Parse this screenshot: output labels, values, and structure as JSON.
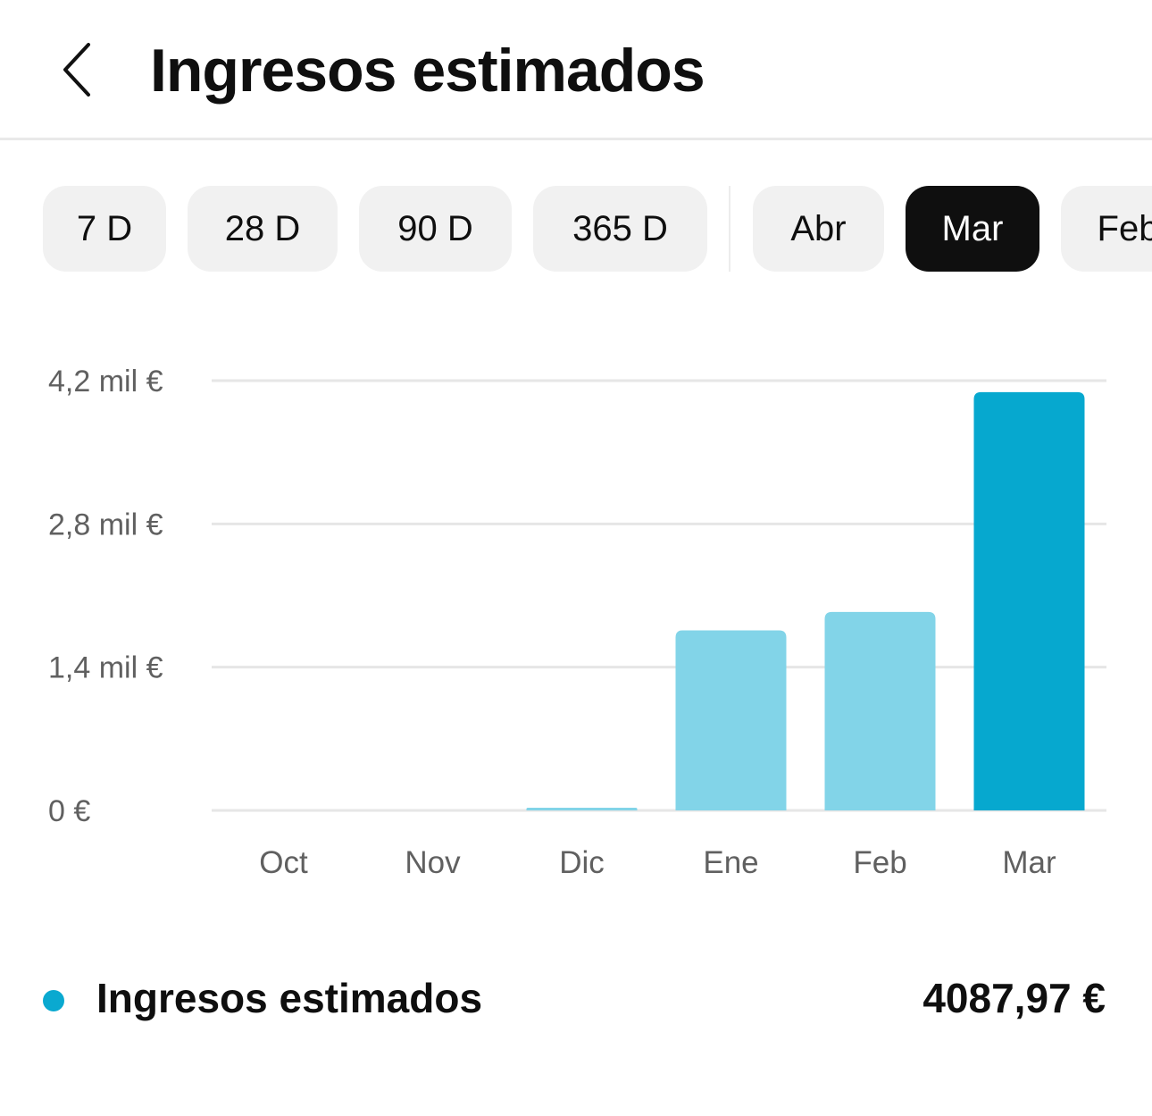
{
  "header": {
    "title": "Ingresos estimados",
    "back_icon": "chevron-left-icon"
  },
  "filters": {
    "chips": [
      {
        "label": "7 D",
        "selected": false
      },
      {
        "label": "28 D",
        "selected": false
      },
      {
        "label": "90 D",
        "selected": false
      },
      {
        "label": "365 D",
        "selected": false
      },
      {
        "label": "Abr",
        "selected": false
      },
      {
        "label": "Mar",
        "selected": true
      },
      {
        "label": "Feb",
        "selected": false
      }
    ]
  },
  "chart_data": {
    "type": "bar",
    "categories": [
      "Oct",
      "Nov",
      "Dic",
      "Ene",
      "Feb",
      "Mar"
    ],
    "values": [
      0,
      0,
      20,
      1760,
      1940,
      4087.97
    ],
    "yticks": [
      {
        "value": 0,
        "label": "0 €"
      },
      {
        "value": 1400,
        "label": "1,4 mil €"
      },
      {
        "value": 2800,
        "label": "2,8 mil €"
      },
      {
        "value": 4200,
        "label": "4,2 mil €"
      }
    ],
    "ylim": [
      0,
      4200
    ],
    "grid": true,
    "highlighted_category": "Mar",
    "colors": {
      "bar": "#82d4e8",
      "bar_highlight": "#06a8cf",
      "grid": "#e6e6e6",
      "tick_text": "#606060"
    }
  },
  "legend": {
    "label": "Ingresos estimados",
    "value": "4087,97 €",
    "color": "#0aa9d0"
  }
}
